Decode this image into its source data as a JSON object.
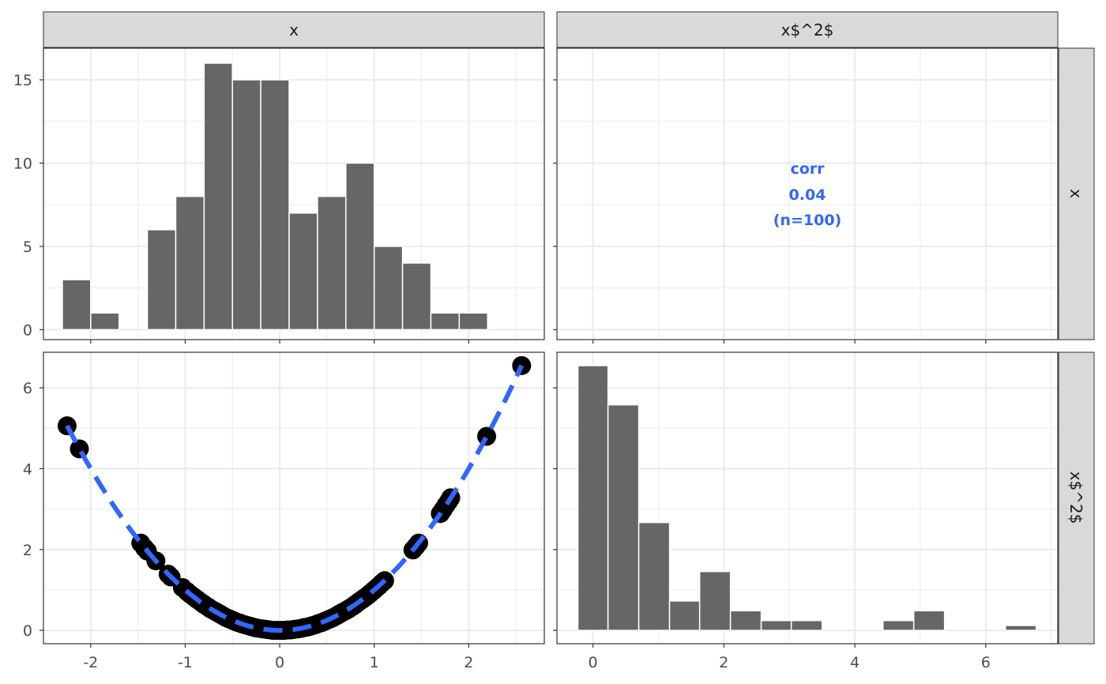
{
  "colors": {
    "bar_fill": "#595959",
    "point": "#000000",
    "smooth_line": "#3366FF",
    "strip_bg": "#D9D9D9",
    "panel_border": "#333333",
    "grid": "#EBEBEB",
    "corr_text": "#3366FF"
  },
  "chart_data": {
    "type": "scatter",
    "layout": "pairs-matrix",
    "variables": [
      "x",
      "x$^2$"
    ],
    "panels": {
      "x_hist": {
        "type": "bar",
        "variable": "x",
        "bins": [
          {
            "x0": -2.3,
            "x1": -2.0,
            "count": 3
          },
          {
            "x0": -2.0,
            "x1": -1.7,
            "count": 1
          },
          {
            "x0": -1.7,
            "x1": -1.4,
            "count": 0
          },
          {
            "x0": -1.4,
            "x1": -1.1,
            "count": 6
          },
          {
            "x0": -1.1,
            "x1": -0.8,
            "count": 8
          },
          {
            "x0": -0.8,
            "x1": -0.5,
            "count": 16
          },
          {
            "x0": -0.5,
            "x1": -0.2,
            "count": 15
          },
          {
            "x0": -0.2,
            "x1": 0.1,
            "count": 15
          },
          {
            "x0": 0.1,
            "x1": 0.4,
            "count": 7
          },
          {
            "x0": 0.4,
            "x1": 0.7,
            "count": 8
          },
          {
            "x0": 0.7,
            "x1": 1.0,
            "count": 10
          },
          {
            "x0": 1.0,
            "x1": 1.3,
            "count": 5
          },
          {
            "x0": 1.3,
            "x1": 1.6,
            "count": 4
          },
          {
            "x0": 1.6,
            "x1": 1.9,
            "count": 1
          },
          {
            "x0": 1.9,
            "x1": 2.2,
            "count": 1
          }
        ],
        "xlim": [
          -2.5,
          2.75
        ],
        "ylim": [
          -0.6,
          16.9
        ],
        "y_ticks": [
          0,
          5,
          10,
          15
        ],
        "y_tick_labels": [
          "0",
          "5",
          "10",
          "15"
        ]
      },
      "corr": {
        "label": "corr",
        "value": "0.04",
        "n": "(n=100)"
      },
      "scatter": {
        "type": "scatter",
        "x_var": "x",
        "y_var": "x$^2$",
        "points": [
          [
            -2.25,
            5.06
          ],
          [
            -2.12,
            4.49
          ],
          [
            -1.47,
            2.16
          ],
          [
            -1.43,
            2.04
          ],
          [
            -1.4,
            1.96
          ],
          [
            -1.31,
            1.72
          ],
          [
            -1.18,
            1.39
          ],
          [
            -1.15,
            1.32
          ],
          [
            -1.03,
            1.06
          ],
          [
            -0.98,
            0.96
          ],
          [
            -0.95,
            0.9
          ],
          [
            -0.91,
            0.83
          ],
          [
            -0.87,
            0.76
          ],
          [
            -0.83,
            0.69
          ],
          [
            -0.8,
            0.64
          ],
          [
            -0.76,
            0.58
          ],
          [
            -0.73,
            0.53
          ],
          [
            -0.69,
            0.48
          ],
          [
            -0.66,
            0.44
          ],
          [
            -0.63,
            0.4
          ],
          [
            -0.6,
            0.36
          ],
          [
            -0.57,
            0.32
          ],
          [
            -0.54,
            0.29
          ],
          [
            -0.51,
            0.26
          ],
          [
            -0.48,
            0.23
          ],
          [
            -0.45,
            0.2
          ],
          [
            -0.42,
            0.18
          ],
          [
            -0.4,
            0.16
          ],
          [
            -0.37,
            0.14
          ],
          [
            -0.34,
            0.12
          ],
          [
            -0.31,
            0.1
          ],
          [
            -0.28,
            0.08
          ],
          [
            -0.25,
            0.06
          ],
          [
            -0.22,
            0.05
          ],
          [
            -0.19,
            0.04
          ],
          [
            -0.16,
            0.03
          ],
          [
            -0.13,
            0.02
          ],
          [
            -0.1,
            0.01
          ],
          [
            -0.07,
            0.0
          ],
          [
            -0.04,
            0.0
          ],
          [
            -0.02,
            0.0
          ],
          [
            0.01,
            0.0
          ],
          [
            0.03,
            0.0
          ],
          [
            0.05,
            0.0
          ],
          [
            0.08,
            0.01
          ],
          [
            0.11,
            0.01
          ],
          [
            0.14,
            0.02
          ],
          [
            0.17,
            0.03
          ],
          [
            0.2,
            0.04
          ],
          [
            0.23,
            0.05
          ],
          [
            0.26,
            0.07
          ],
          [
            0.29,
            0.08
          ],
          [
            0.32,
            0.1
          ],
          [
            0.35,
            0.12
          ],
          [
            0.38,
            0.14
          ],
          [
            0.41,
            0.17
          ],
          [
            0.44,
            0.19
          ],
          [
            0.47,
            0.22
          ],
          [
            0.5,
            0.25
          ],
          [
            0.53,
            0.28
          ],
          [
            0.56,
            0.31
          ],
          [
            0.6,
            0.36
          ],
          [
            0.63,
            0.4
          ],
          [
            0.66,
            0.44
          ],
          [
            0.7,
            0.49
          ],
          [
            0.73,
            0.53
          ],
          [
            0.77,
            0.59
          ],
          [
            0.8,
            0.64
          ],
          [
            0.84,
            0.71
          ],
          [
            0.87,
            0.76
          ],
          [
            0.9,
            0.81
          ],
          [
            0.93,
            0.86
          ],
          [
            0.96,
            0.92
          ],
          [
            0.99,
            0.98
          ],
          [
            1.02,
            1.04
          ],
          [
            1.05,
            1.1
          ],
          [
            1.08,
            1.17
          ],
          [
            1.11,
            1.23
          ],
          [
            1.41,
            1.99
          ],
          [
            1.44,
            2.07
          ],
          [
            1.47,
            2.16
          ],
          [
            1.7,
            2.89
          ],
          [
            1.73,
            2.99
          ],
          [
            1.76,
            3.1
          ],
          [
            1.79,
            3.2
          ],
          [
            1.81,
            3.28
          ],
          [
            2.19,
            4.8
          ],
          [
            2.56,
            6.55
          ]
        ],
        "smooth": "quadratic",
        "xlim": [
          -2.5,
          2.8
        ],
        "ylim": [
          -0.33,
          6.88
        ],
        "x_ticks": [
          -2,
          -1,
          0,
          1,
          2
        ],
        "x_tick_labels": [
          "-2",
          "-1",
          "0",
          "1",
          "2"
        ],
        "y_ticks": [
          0,
          2,
          4,
          6
        ],
        "y_tick_labels": [
          "0",
          "2",
          "4",
          "6"
        ]
      },
      "x2_hist": {
        "type": "bar",
        "variable": "x$^2$",
        "bins": [
          {
            "x0": -0.23,
            "x1": 0.23,
            "count": 27
          },
          {
            "x0": 0.23,
            "x1": 0.7,
            "count": 23
          },
          {
            "x0": 0.7,
            "x1": 1.17,
            "count": 11
          },
          {
            "x0": 1.17,
            "x1": 1.63,
            "count": 3
          },
          {
            "x0": 1.63,
            "x1": 2.1,
            "count": 6
          },
          {
            "x0": 2.1,
            "x1": 2.57,
            "count": 2
          },
          {
            "x0": 2.57,
            "x1": 3.03,
            "count": 1
          },
          {
            "x0": 3.03,
            "x1": 3.5,
            "count": 1
          },
          {
            "x0": 3.5,
            "x1": 3.97,
            "count": 0
          },
          {
            "x0": 3.97,
            "x1": 4.43,
            "count": 0
          },
          {
            "x0": 4.43,
            "x1": 4.9,
            "count": 1
          },
          {
            "x0": 4.9,
            "x1": 5.37,
            "count": 2
          },
          {
            "x0": 5.37,
            "x1": 5.83,
            "count": 0
          },
          {
            "x0": 5.83,
            "x1": 6.3,
            "count": 0
          },
          {
            "x0": 6.3,
            "x1": 6.77,
            "count": 0.5
          }
        ],
        "xlim": [
          -0.55,
          7.1
        ],
        "x_ticks": [
          0,
          2,
          4,
          6
        ],
        "x_tick_labels": [
          "0",
          "2",
          "4",
          "6"
        ]
      }
    },
    "strips": {
      "top": [
        "x",
        "x$^2$"
      ],
      "right": [
        "x",
        "x$^2$"
      ]
    }
  }
}
